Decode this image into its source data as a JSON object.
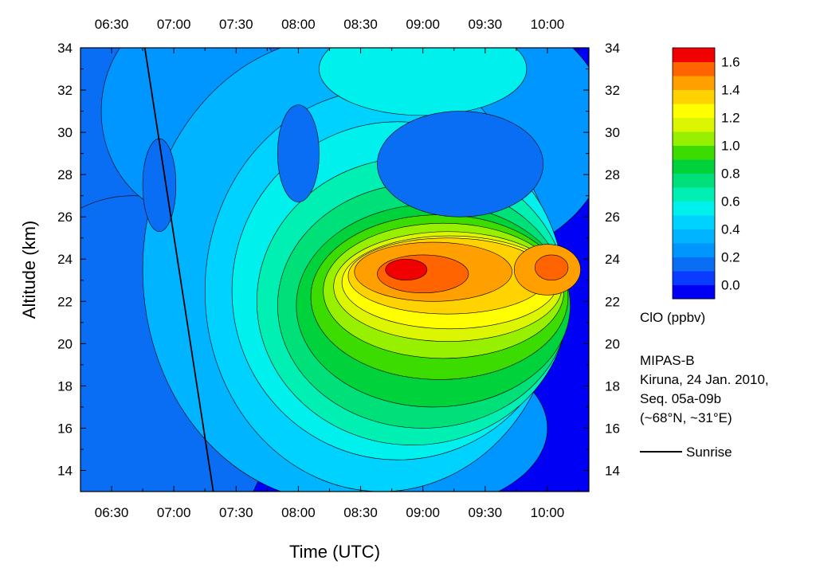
{
  "chart_data": {
    "type": "heatmap",
    "subtype": "filled-contour",
    "xlabel": "Time (UTC)",
    "ylabel": "Altitude (km)",
    "xlim": [
      "06:15",
      "10:20"
    ],
    "ylim": [
      13,
      34
    ],
    "x_ticks": [
      "06:30",
      "07:00",
      "07:30",
      "08:00",
      "08:30",
      "09:00",
      "09:30",
      "10:00"
    ],
    "y_ticks": [
      14,
      16,
      18,
      20,
      22,
      24,
      26,
      28,
      30,
      32,
      34
    ],
    "top_axis_ticks": [
      "06:30",
      "07:00",
      "07:30",
      "08:00",
      "08:30",
      "09:00",
      "09:30",
      "10:00"
    ],
    "right_axis_ticks": [
      14,
      16,
      18,
      20,
      22,
      24,
      26,
      28,
      30,
      32,
      34
    ],
    "colorbar": {
      "label": "ClO (ppbv)",
      "tick_labels": [
        "0.0",
        "0.2",
        "0.4",
        "0.6",
        "0.8",
        "1.0",
        "1.2",
        "1.4",
        "1.6"
      ],
      "levels": [
        0.0,
        0.1,
        0.2,
        0.3,
        0.4,
        0.5,
        0.6,
        0.7,
        0.8,
        0.9,
        1.0,
        1.1,
        1.2,
        1.3,
        1.4,
        1.5,
        1.6
      ],
      "colors": [
        "#0000f4",
        "#0a3cff",
        "#0a6ef5",
        "#0096ff",
        "#00b4ff",
        "#00d2ff",
        "#00f0ee",
        "#00f0b4",
        "#00e078",
        "#00d23c",
        "#3cdc00",
        "#96f000",
        "#dcf500",
        "#ffff00",
        "#ffd200",
        "#ffa000",
        "#ff6400",
        "#f00000"
      ]
    },
    "annotations": [
      "MIPAS-B",
      "Kiruna, 24 Jan. 2010,",
      "Seq. 05a-09b",
      "(~68°N, ~31°E)"
    ],
    "sunrise_line": {
      "label": "Sunrise",
      "points": [
        {
          "time": "06:46",
          "altitude": 34
        },
        {
          "time": "07:19",
          "altitude": 13
        }
      ]
    },
    "features": [
      {
        "description": "ClO maximum",
        "time": "08:55",
        "altitude": 23.3,
        "value": 1.65
      },
      {
        "description": "secondary maximum",
        "time": "10:00",
        "altitude": 23.5,
        "value": 1.55
      }
    ]
  },
  "colors": {
    "background": "#0000f4",
    "axis": "#000000"
  }
}
